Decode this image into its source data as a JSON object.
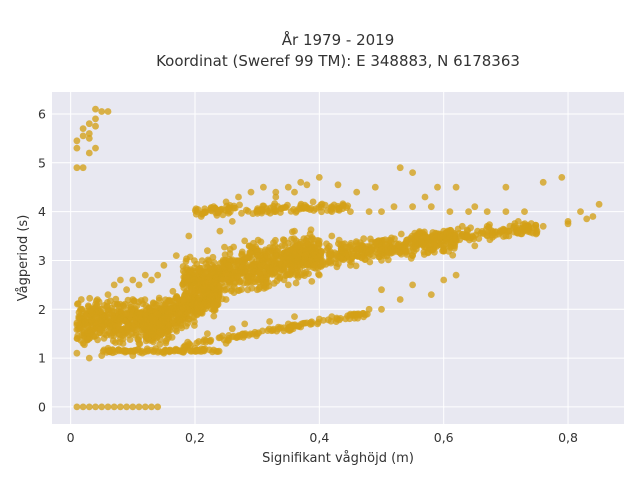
{
  "chart_data": {
    "type": "scatter",
    "title_lines": [
      "År 1979 - 2019",
      "Koordinat (Sweref 99 TM): E 348883, N 6178363"
    ],
    "xlabel": "Signifikant våghöjd (m)",
    "ylabel": "Vågperiod (s)",
    "xlim": [
      -0.03,
      0.89
    ],
    "ylim": [
      -0.35,
      6.45
    ],
    "x_ticks": [
      0,
      0.2,
      0.4,
      0.6,
      0.8
    ],
    "x_tick_labels": [
      "0",
      "0,2",
      "0,4",
      "0,6",
      "0,8"
    ],
    "y_ticks": [
      0,
      1,
      2,
      3,
      4,
      5,
      6
    ],
    "y_tick_labels": [
      "0",
      "1",
      "2",
      "3",
      "4",
      "5",
      "6"
    ],
    "grid": true,
    "legend": "none",
    "marker_color": "#D4A017",
    "background_color": "#E8E8F1",
    "points": [
      [
        0.01,
        0.0
      ],
      [
        0.02,
        0.0
      ],
      [
        0.03,
        0.0
      ],
      [
        0.04,
        0.0
      ],
      [
        0.05,
        0.0
      ],
      [
        0.06,
        0.0
      ],
      [
        0.07,
        0.0
      ],
      [
        0.08,
        0.0
      ],
      [
        0.09,
        0.0
      ],
      [
        0.1,
        0.0
      ],
      [
        0.11,
        0.0
      ],
      [
        0.12,
        0.0
      ],
      [
        0.13,
        0.0
      ],
      [
        0.14,
        0.0
      ],
      [
        0.01,
        4.9
      ],
      [
        0.02,
        4.9
      ],
      [
        0.01,
        5.3
      ],
      [
        0.01,
        5.45
      ],
      [
        0.02,
        5.55
      ],
      [
        0.02,
        5.7
      ],
      [
        0.03,
        5.6
      ],
      [
        0.03,
        5.8
      ],
      [
        0.04,
        5.9
      ],
      [
        0.03,
        5.5
      ],
      [
        0.04,
        5.3
      ],
      [
        0.05,
        6.05
      ],
      [
        0.04,
        6.1
      ],
      [
        0.06,
        6.05
      ],
      [
        0.03,
        5.2
      ],
      [
        0.04,
        5.75
      ],
      [
        0.01,
        1.1
      ],
      [
        0.02,
        1.3
      ],
      [
        0.03,
        1.5
      ],
      [
        0.04,
        1.7
      ],
      [
        0.05,
        2.0
      ],
      [
        0.06,
        2.3
      ],
      [
        0.07,
        2.5
      ],
      [
        0.08,
        2.6
      ],
      [
        0.09,
        2.4
      ],
      [
        0.1,
        2.6
      ],
      [
        0.11,
        2.5
      ],
      [
        0.12,
        2.7
      ],
      [
        0.13,
        2.6
      ],
      [
        0.14,
        2.7
      ],
      [
        0.15,
        2.9
      ],
      [
        0.17,
        3.1
      ],
      [
        0.19,
        3.5
      ],
      [
        0.21,
        3.9
      ],
      [
        0.23,
        4.1
      ],
      [
        0.25,
        4.2
      ],
      [
        0.27,
        4.3
      ],
      [
        0.29,
        4.4
      ],
      [
        0.31,
        4.5
      ],
      [
        0.33,
        4.4
      ],
      [
        0.35,
        4.5
      ],
      [
        0.37,
        4.6
      ],
      [
        0.38,
        4.55
      ],
      [
        0.3,
        4.0
      ],
      [
        0.33,
        4.3
      ],
      [
        0.36,
        4.4
      ],
      [
        0.39,
        4.2
      ],
      [
        0.42,
        4.0
      ],
      [
        0.45,
        4.0
      ],
      [
        0.48,
        4.0
      ],
      [
        0.5,
        4.0
      ],
      [
        0.52,
        4.1
      ],
      [
        0.55,
        4.1
      ],
      [
        0.58,
        4.1
      ],
      [
        0.61,
        4.0
      ],
      [
        0.64,
        4.0
      ],
      [
        0.67,
        4.0
      ],
      [
        0.7,
        4.0
      ],
      [
        0.4,
        4.7
      ],
      [
        0.43,
        4.55
      ],
      [
        0.46,
        4.4
      ],
      [
        0.49,
        4.5
      ],
      [
        0.53,
        4.9
      ],
      [
        0.55,
        4.8
      ],
      [
        0.57,
        4.3
      ],
      [
        0.59,
        4.5
      ],
      [
        0.62,
        4.5
      ],
      [
        0.65,
        4.1
      ],
      [
        0.7,
        4.5
      ],
      [
        0.73,
        4.0
      ],
      [
        0.76,
        4.6
      ],
      [
        0.79,
        4.7
      ],
      [
        0.82,
        4.0
      ],
      [
        0.85,
        4.15
      ],
      [
        0.05,
        1.05
      ],
      [
        0.1,
        1.05
      ],
      [
        0.15,
        1.1
      ],
      [
        0.2,
        1.2
      ],
      [
        0.25,
        1.3
      ],
      [
        0.3,
        1.5
      ],
      [
        0.35,
        1.7
      ],
      [
        0.4,
        1.8
      ],
      [
        0.45,
        1.9
      ],
      [
        0.48,
        2.0
      ],
      [
        0.2,
        2.1
      ],
      [
        0.25,
        2.2
      ],
      [
        0.3,
        2.4
      ],
      [
        0.35,
        2.5
      ],
      [
        0.4,
        2.7
      ],
      [
        0.45,
        2.9
      ],
      [
        0.5,
        3.0
      ],
      [
        0.55,
        3.1
      ],
      [
        0.6,
        3.2
      ],
      [
        0.65,
        3.3
      ],
      [
        0.7,
        3.5
      ],
      [
        0.75,
        3.6
      ],
      [
        0.8,
        3.8
      ],
      [
        0.84,
        3.9
      ],
      [
        0.6,
        3.6
      ],
      [
        0.63,
        3.7
      ],
      [
        0.67,
        3.7
      ],
      [
        0.72,
        3.8
      ],
      [
        0.76,
        3.7
      ],
      [
        0.8,
        3.75
      ],
      [
        0.83,
        3.85
      ],
      [
        0.5,
        2.4
      ],
      [
        0.55,
        2.5
      ],
      [
        0.6,
        2.6
      ],
      [
        0.62,
        2.7
      ],
      [
        0.58,
        2.3
      ],
      [
        0.53,
        2.2
      ],
      [
        0.2,
        2.6
      ],
      [
        0.22,
        3.2
      ],
      [
        0.24,
        3.6
      ],
      [
        0.26,
        3.8
      ],
      [
        0.28,
        3.4
      ],
      [
        0.3,
        3.1
      ],
      [
        0.32,
        2.8
      ],
      [
        0.34,
        3.3
      ],
      [
        0.36,
        3.6
      ],
      [
        0.38,
        3.2
      ],
      [
        0.4,
        3.4
      ],
      [
        0.42,
        3.5
      ],
      [
        0.44,
        3.2
      ],
      [
        0.46,
        3.3
      ],
      [
        0.15,
        1.6
      ],
      [
        0.12,
        1.9
      ],
      [
        0.08,
        1.4
      ],
      [
        0.06,
        1.2
      ],
      [
        0.16,
        2.0
      ],
      [
        0.18,
        2.2
      ],
      [
        0.1,
        2.2
      ],
      [
        0.04,
        2.1
      ],
      [
        0.03,
        1.0
      ],
      [
        0.07,
        1.8
      ],
      [
        0.09,
        1.6
      ],
      [
        0.11,
        1.3
      ],
      [
        0.13,
        1.5
      ],
      [
        0.22,
        1.5
      ],
      [
        0.26,
        1.6
      ],
      [
        0.28,
        1.7
      ],
      [
        0.32,
        1.75
      ],
      [
        0.36,
        1.85
      ],
      [
        0.42,
        1.85
      ],
      [
        0.46,
        1.9
      ],
      [
        0.5,
        2.0
      ]
    ]
  }
}
